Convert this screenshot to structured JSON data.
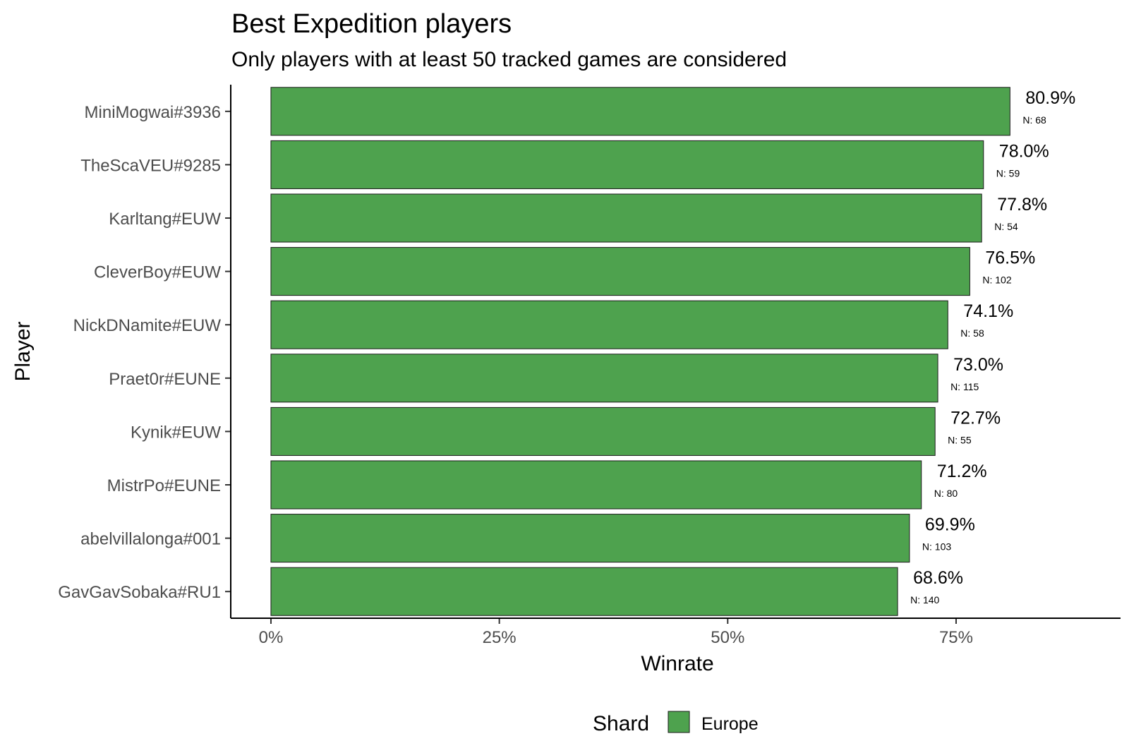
{
  "chart_data": {
    "type": "bar",
    "orientation": "horizontal",
    "title": "Best Expedition players",
    "subtitle": "Only players with at least 50 tracked games are considered",
    "xlabel": "Winrate",
    "ylabel": "Player",
    "xlim": [
      -0.044,
      0.93
    ],
    "xticks": [
      {
        "value": 0,
        "label": "0%"
      },
      {
        "value": 0.25,
        "label": "25%"
      },
      {
        "value": 0.5,
        "label": "50%"
      },
      {
        "value": 0.75,
        "label": "75%"
      }
    ],
    "grid": false,
    "legend": {
      "title": "Shard",
      "position": "bottom",
      "entries": [
        {
          "label": "Europe",
          "color": "#4ea24e"
        }
      ]
    },
    "bar_color": "#4ea24e",
    "bar_border_color": "#1a1a1a",
    "categories": [
      "MiniMogwai#3936",
      "TheScaVEU#9285",
      "Karltang#EUW",
      "CleverBoy#EUW",
      "NickDNamite#EUW",
      "Praet0r#EUNE",
      "Kynik#EUW",
      "MistrPo#EUNE",
      "abelvillalonga#001",
      "GavGavSobaka#RU1"
    ],
    "values": [
      0.809,
      0.78,
      0.778,
      0.765,
      0.741,
      0.73,
      0.727,
      0.712,
      0.699,
      0.686
    ],
    "value_labels": [
      "80.9%",
      "78.0%",
      "77.8%",
      "76.5%",
      "74.1%",
      "73.0%",
      "72.7%",
      "71.2%",
      "69.9%",
      "68.6%"
    ],
    "games": [
      "N: 68",
      "N: 59",
      "N: 54",
      "N: 102",
      "N: 58",
      "N: 115",
      "N: 55",
      "N: 80",
      "N: 103",
      "N: 140"
    ]
  }
}
